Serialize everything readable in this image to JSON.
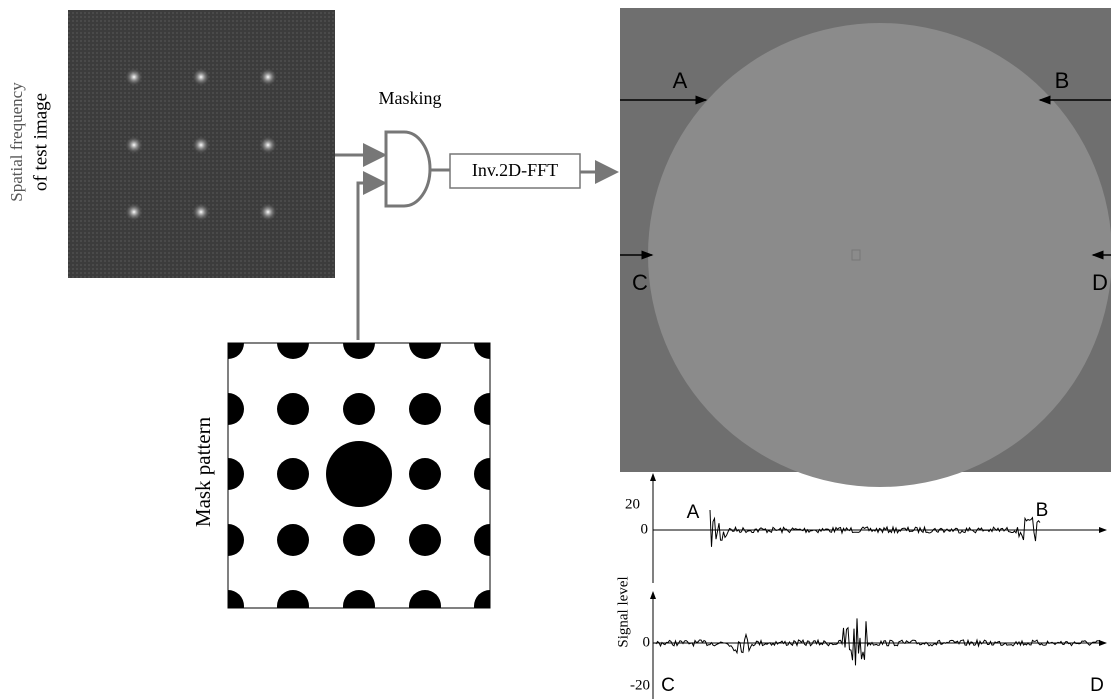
{
  "left_panel": {
    "input_label": [
      "Spatial frequency",
      "of test image"
    ],
    "operation": "Masking",
    "transform": "Inv.2D-FFT",
    "mask_label": "Mask pattern"
  },
  "image_markers": [
    "A",
    "B",
    "C",
    "D"
  ],
  "signal_plot": {
    "axis_label": "Signal level",
    "top": {
      "ticks": [
        20,
        0
      ],
      "start": "A",
      "end": "B"
    },
    "bottom": {
      "ticks": [
        0,
        -20
      ],
      "start": "C",
      "end": "D"
    }
  }
}
